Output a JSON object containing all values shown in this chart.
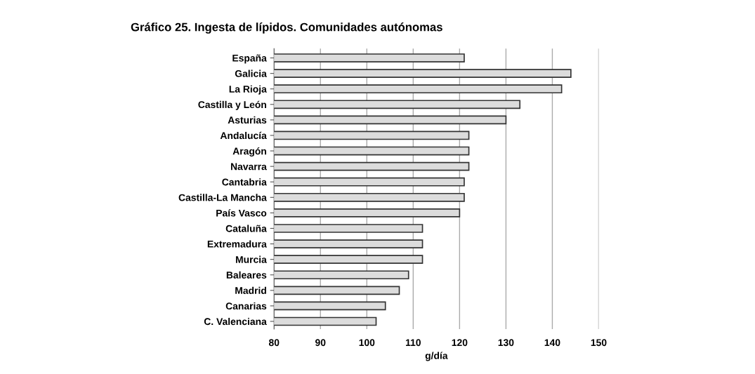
{
  "chart_data": {
    "type": "bar",
    "orientation": "horizontal",
    "title": "Gráfico 25. Ingesta de lípidos. Comunidades autónomas",
    "xlabel": "g/día",
    "categories": [
      "España",
      "Galicia",
      "La Rioja",
      "Castilla y León",
      "Asturias",
      "Andalucía",
      "Aragón",
      "Navarra",
      "Cantabria",
      "Castilla-La Mancha",
      "País Vasco",
      "Cataluña",
      "Extremadura",
      "Murcia",
      "Baleares",
      "Madrid",
      "Canarias",
      "C. Valenciana"
    ],
    "values": [
      121,
      144,
      142,
      133,
      130,
      122,
      122,
      122,
      121,
      121,
      120,
      112,
      112,
      112,
      109,
      107,
      104,
      102
    ],
    "color": "#dcdcdc",
    "xlim": [
      80,
      150
    ],
    "xticks": [
      80,
      90,
      100,
      110,
      120,
      130,
      140,
      150
    ],
    "grid": "x"
  }
}
